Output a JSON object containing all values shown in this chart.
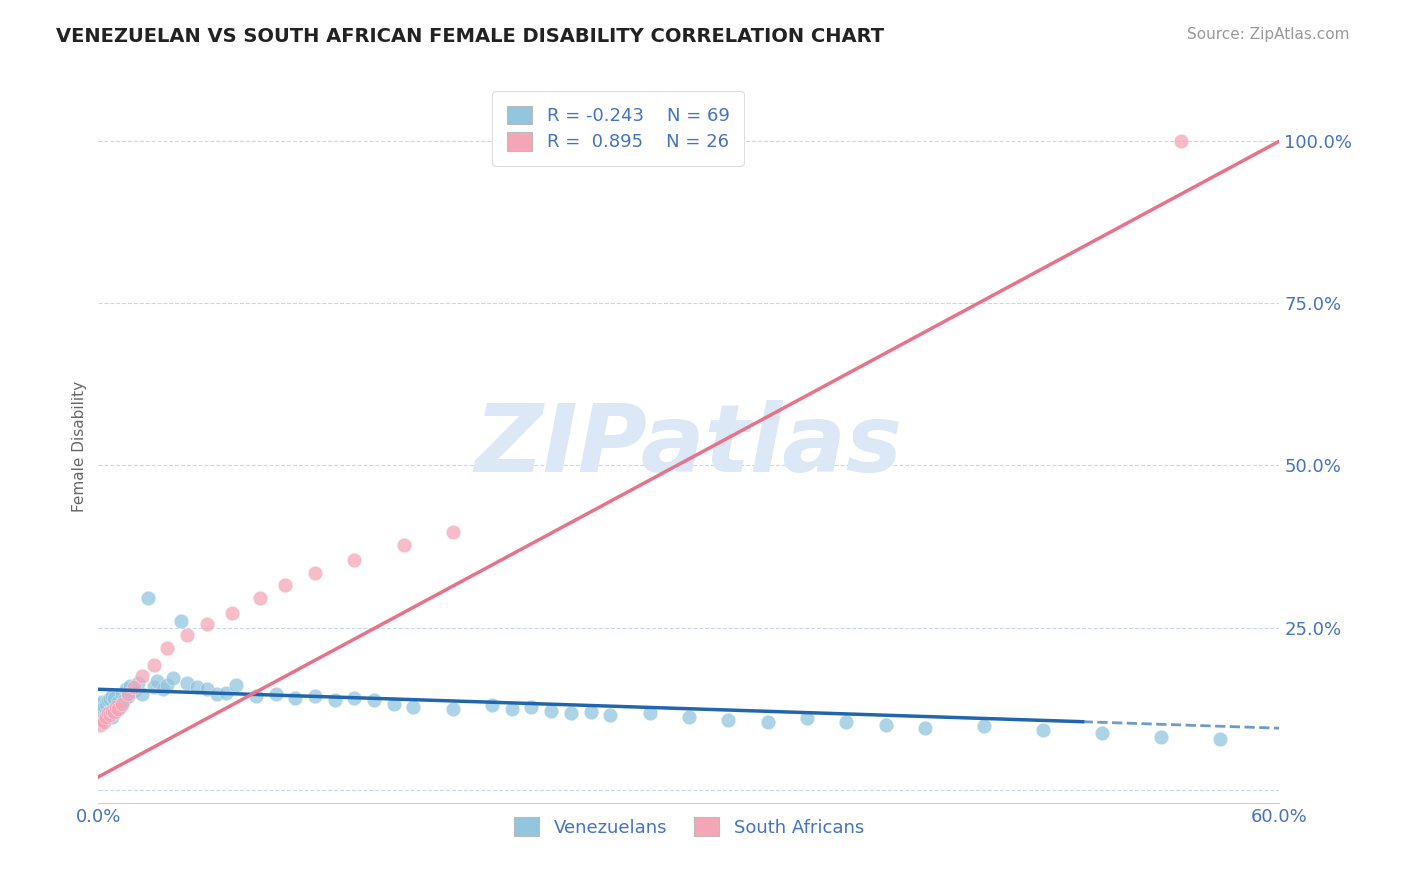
{
  "title": "VENEZUELAN VS SOUTH AFRICAN FEMALE DISABILITY CORRELATION CHART",
  "source": "Source: ZipAtlas.com",
  "ylabel": "Female Disability",
  "xlim": [
    0.0,
    0.6
  ],
  "ylim": [
    -0.02,
    1.08
  ],
  "yticks": [
    0.0,
    0.25,
    0.5,
    0.75,
    1.0
  ],
  "ytick_labels": [
    "",
    "25.0%",
    "50.0%",
    "75.0%",
    "100.0%"
  ],
  "xticks": [
    0.0,
    0.1,
    0.2,
    0.3,
    0.4,
    0.5,
    0.6
  ],
  "xtick_labels": [
    "0.0%",
    "",
    "",
    "",
    "",
    "",
    "60.0%"
  ],
  "color_blue": "#92c5de",
  "color_pink": "#f4a6b8",
  "color_blue_line": "#2166ac",
  "color_pink_line": "#e8728a",
  "watermark": "ZIPatlas",
  "watermark_color": "#dce8f5",
  "background_color": "#ffffff",
  "grid_color": "#c8d8e8",
  "title_color": "#222222",
  "axis_color": "#4472c4",
  "venezuelan_x": [
    0.001,
    0.002,
    0.002,
    0.003,
    0.003,
    0.004,
    0.004,
    0.005,
    0.005,
    0.006,
    0.006,
    0.007,
    0.007,
    0.008,
    0.008,
    0.009,
    0.01,
    0.011,
    0.012,
    0.013,
    0.014,
    0.015,
    0.016,
    0.018,
    0.02,
    0.022,
    0.025,
    0.028,
    0.03,
    0.033,
    0.035,
    0.038,
    0.042,
    0.045,
    0.05,
    0.055,
    0.06,
    0.065,
    0.07,
    0.08,
    0.09,
    0.1,
    0.11,
    0.12,
    0.13,
    0.14,
    0.15,
    0.16,
    0.18,
    0.2,
    0.21,
    0.22,
    0.23,
    0.24,
    0.25,
    0.26,
    0.28,
    0.3,
    0.32,
    0.34,
    0.36,
    0.38,
    0.4,
    0.42,
    0.45,
    0.48,
    0.51,
    0.54,
    0.57
  ],
  "venezuelan_y": [
    0.13,
    0.125,
    0.135,
    0.12,
    0.128,
    0.118,
    0.132,
    0.115,
    0.138,
    0.122,
    0.14,
    0.112,
    0.145,
    0.118,
    0.142,
    0.125,
    0.135,
    0.128,
    0.148,
    0.138,
    0.155,
    0.145,
    0.16,
    0.152,
    0.165,
    0.148,
    0.295,
    0.158,
    0.168,
    0.155,
    0.162,
    0.172,
    0.26,
    0.165,
    0.158,
    0.155,
    0.148,
    0.15,
    0.162,
    0.145,
    0.148,
    0.142,
    0.145,
    0.138,
    0.142,
    0.138,
    0.132,
    0.128,
    0.125,
    0.13,
    0.125,
    0.128,
    0.122,
    0.118,
    0.12,
    0.115,
    0.118,
    0.112,
    0.108,
    0.105,
    0.11,
    0.105,
    0.1,
    0.095,
    0.098,
    0.092,
    0.088,
    0.082,
    0.078
  ],
  "southafrican_x": [
    0.001,
    0.002,
    0.003,
    0.004,
    0.005,
    0.006,
    0.007,
    0.008,
    0.009,
    0.01,
    0.012,
    0.015,
    0.018,
    0.022,
    0.028,
    0.035,
    0.045,
    0.055,
    0.068,
    0.082,
    0.095,
    0.11,
    0.13,
    0.155,
    0.18,
    0.55
  ],
  "southafrican_y": [
    0.1,
    0.108,
    0.105,
    0.112,
    0.118,
    0.115,
    0.122,
    0.12,
    0.128,
    0.125,
    0.132,
    0.148,
    0.158,
    0.175,
    0.192,
    0.218,
    0.238,
    0.255,
    0.272,
    0.295,
    0.315,
    0.335,
    0.355,
    0.378,
    0.398,
    1.0
  ],
  "ven_R": -0.243,
  "ven_N": 69,
  "sa_R": 0.895,
  "sa_N": 26
}
